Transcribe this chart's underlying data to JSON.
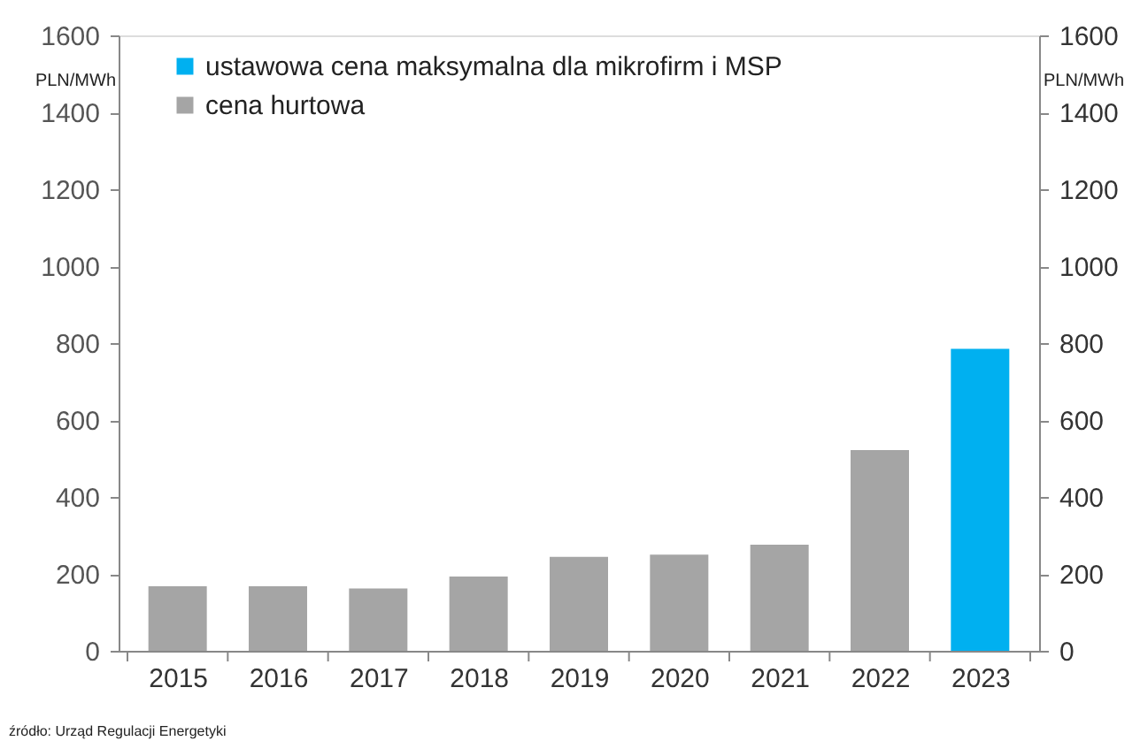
{
  "chart_data": {
    "type": "bar",
    "categories": [
      "2015",
      "2016",
      "2017",
      "2018",
      "2019",
      "2020",
      "2021",
      "2022",
      "2023"
    ],
    "series": [
      {
        "name": "ustawowa cena maksymalna dla mikrofirm i MSP",
        "color": "#00b0f0",
        "values": [
          null,
          null,
          null,
          null,
          null,
          null,
          null,
          null,
          785
        ]
      },
      {
        "name": "cena hurtowa",
        "color": "#a5a5a5",
        "values": [
          168,
          168,
          162,
          193,
          244,
          250,
          276,
          522,
          null
        ]
      }
    ],
    "ylabel": "PLN/MWh",
    "y2label": "PLN/MWh",
    "ylim": [
      0,
      1600
    ],
    "yticks": [
      0,
      200,
      400,
      600,
      800,
      1000,
      1200,
      1400,
      1600
    ],
    "y2lim": [
      0,
      1600
    ],
    "y2ticks": [
      0,
      200,
      400,
      600,
      800,
      1000,
      1200,
      1400,
      1600
    ],
    "grid": false,
    "legend": "top left",
    "annotations": [
      "źródło: Urząd Regulacji Energetyki"
    ]
  }
}
